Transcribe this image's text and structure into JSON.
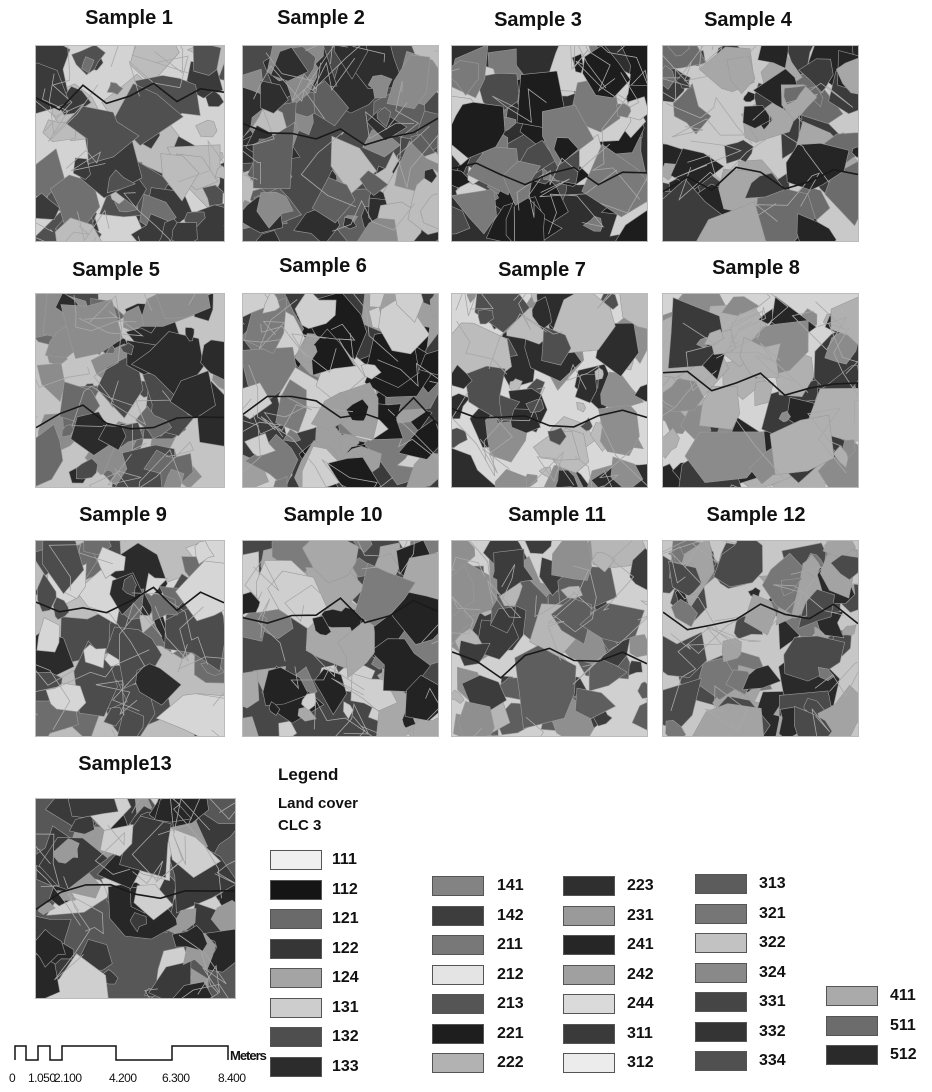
{
  "samples": [
    {
      "label": "Sample 1",
      "palette": [
        "#d3d3d3",
        "#3a3a3a",
        "#bcbcbc",
        "#707070",
        "#505050"
      ]
    },
    {
      "label": "Sample 2",
      "palette": [
        "#4a4a4a",
        "#2e2e2e",
        "#8a8a8a",
        "#bdbdbd",
        "#5f5f5f"
      ]
    },
    {
      "label": "Sample 3",
      "palette": [
        "#2f2f2f",
        "#1d1d1d",
        "#7a7a7a",
        "#cfcfcf",
        "#4b4b4b"
      ]
    },
    {
      "label": "Sample 4",
      "palette": [
        "#c9c9c9",
        "#3c3c3c",
        "#6c6c6c",
        "#a7a7a7",
        "#252525"
      ]
    },
    {
      "label": "Sample 5",
      "palette": [
        "#c4c4c4",
        "#4a4a4a",
        "#2b2b2b",
        "#8c8c8c",
        "#6a6a6a"
      ]
    },
    {
      "label": "Sample 6",
      "palette": [
        "#3b3b3b",
        "#cfcfcf",
        "#7b7b7b",
        "#1c1c1c",
        "#9f9f9f"
      ]
    },
    {
      "label": "Sample 7",
      "palette": [
        "#d8d8d8",
        "#bcbcbc",
        "#4f4f4f",
        "#8e8e8e",
        "#2d2d2d"
      ]
    },
    {
      "label": "Sample 8",
      "palette": [
        "#d4d4d4",
        "#3a3a3a",
        "#8b8b8b",
        "#b0b0b0",
        "#262626"
      ]
    },
    {
      "label": "Sample 9",
      "palette": [
        "#bdbdbd",
        "#2b2b2b",
        "#6d6d6d",
        "#d6d6d6",
        "#4c4c4c"
      ]
    },
    {
      "label": "Sample 10",
      "palette": [
        "#474747",
        "#cfcfcf",
        "#7c7c7c",
        "#232323",
        "#a8a8a8"
      ]
    },
    {
      "label": "Sample 11",
      "palette": [
        "#d0d0d0",
        "#8f8f8f",
        "#3c3c3c",
        "#b6b6b6",
        "#5e5e5e"
      ]
    },
    {
      "label": "Sample 12",
      "palette": [
        "#c7c7c7",
        "#2a2a2a",
        "#777777",
        "#a3a3a3",
        "#4a4a4a"
      ]
    },
    {
      "label": "Sample13",
      "palette": [
        "#575757",
        "#3a3a3a",
        "#9a9a9a",
        "#cfcfcf",
        "#272727"
      ]
    }
  ],
  "legend": {
    "title": "Legend",
    "subtitle1": "Land cover",
    "subtitle2": "CLC 3",
    "items": [
      {
        "code": "111",
        "color": "#f0f0f0"
      },
      {
        "code": "112",
        "color": "#151515"
      },
      {
        "code": "121",
        "color": "#6a6a6a"
      },
      {
        "code": "122",
        "color": "#363636"
      },
      {
        "code": "124",
        "color": "#a4a4a4"
      },
      {
        "code": "131",
        "color": "#cdcdcd"
      },
      {
        "code": "132",
        "color": "#4e4e4e"
      },
      {
        "code": "133",
        "color": "#2c2c2c"
      },
      {
        "code": "141",
        "color": "#838383"
      },
      {
        "code": "142",
        "color": "#3d3d3d"
      },
      {
        "code": "211",
        "color": "#787878"
      },
      {
        "code": "212",
        "color": "#e4e4e4"
      },
      {
        "code": "213",
        "color": "#555555"
      },
      {
        "code": "221",
        "color": "#1e1e1e"
      },
      {
        "code": "222",
        "color": "#b2b2b2"
      },
      {
        "code": "223",
        "color": "#2f2f2f"
      },
      {
        "code": "231",
        "color": "#9a9a9a"
      },
      {
        "code": "241",
        "color": "#262626"
      },
      {
        "code": "242",
        "color": "#a0a0a0"
      },
      {
        "code": "244",
        "color": "#dadada"
      },
      {
        "code": "311",
        "color": "#3a3a3a"
      },
      {
        "code": "312",
        "color": "#ececec"
      },
      {
        "code": "313",
        "color": "#5c5c5c"
      },
      {
        "code": "321",
        "color": "#767676"
      },
      {
        "code": "322",
        "color": "#c2c2c2"
      },
      {
        "code": "324",
        "color": "#898989"
      },
      {
        "code": "331",
        "color": "#454545"
      },
      {
        "code": "332",
        "color": "#343434"
      },
      {
        "code": "334",
        "color": "#505050"
      },
      {
        "code": "411",
        "color": "#aaaaaa"
      },
      {
        "code": "511",
        "color": "#6c6c6c"
      },
      {
        "code": "512",
        "color": "#2a2a2a"
      }
    ]
  },
  "scale_bar": {
    "labels": [
      "0",
      "1.050",
      "2.100",
      "4.200",
      "6.300",
      "8.400"
    ],
    "unit": "Meters"
  }
}
